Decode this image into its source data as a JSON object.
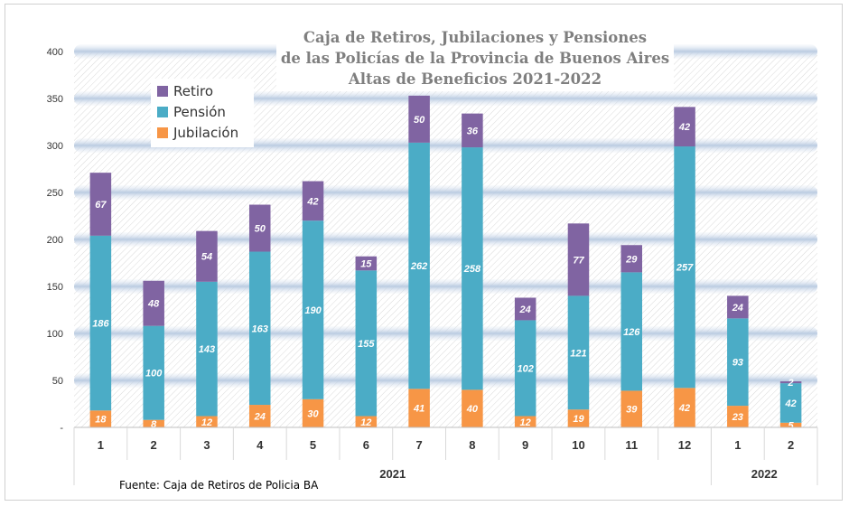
{
  "chart_data": {
    "type": "bar",
    "stacked": true,
    "title_lines": [
      "Caja de Retiros, Jubilaciones y Pensiones",
      "de las Policías de la Provincia de Buenos Aires",
      "Altas de Beneficios 2021-2022"
    ],
    "categories": [
      "1",
      "2",
      "3",
      "4",
      "5",
      "6",
      "7",
      "8",
      "9",
      "10",
      "11",
      "12",
      "1",
      "2"
    ],
    "year_groups": [
      {
        "label": "2021",
        "count": 12
      },
      {
        "label": "2022",
        "count": 2
      }
    ],
    "series": [
      {
        "name": "Jubilación",
        "color": "#f79646",
        "values": [
          18,
          8,
          12,
          24,
          30,
          12,
          41,
          40,
          12,
          19,
          39,
          42,
          23,
          5
        ]
      },
      {
        "name": "Pensión",
        "color": "#4bacc6",
        "values": [
          186,
          100,
          143,
          163,
          190,
          155,
          262,
          258,
          102,
          121,
          126,
          257,
          93,
          42
        ]
      },
      {
        "name": "Retiro",
        "color": "#8064a2",
        "values": [
          67,
          48,
          54,
          50,
          42,
          15,
          50,
          36,
          24,
          77,
          29,
          42,
          24,
          2
        ]
      }
    ],
    "legend_order": [
      "Retiro",
      "Pensión",
      "Jubilación"
    ],
    "legend_position": "top-left",
    "y_ticks": [
      "-",
      "50",
      "100",
      "150",
      "200",
      "250",
      "300",
      "350",
      "400"
    ],
    "ylim": [
      0,
      400
    ],
    "grid": true,
    "source": "Fuente: Caja de Retiros de Policia BA"
  }
}
